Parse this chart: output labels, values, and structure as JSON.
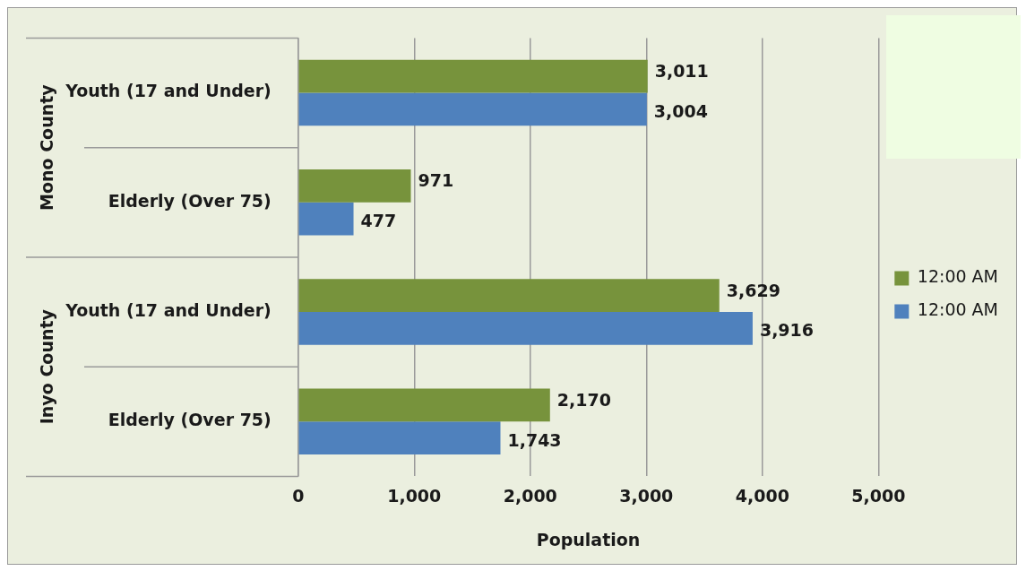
{
  "chart_data": {
    "type": "bar",
    "orientation": "horizontal",
    "xlabel": "Population",
    "categories": [
      "Youth (17 and Under)",
      "Elderly (Over 75)",
      "Youth (17 and Under)",
      "Elderly (Over 75)"
    ],
    "series": [
      {
        "name": "12:00 AM",
        "color": "#77933c",
        "values": [
          3011,
          971,
          3629,
          2170
        ],
        "value_labels": [
          "3,011",
          "971",
          "3,629",
          "2,170"
        ]
      },
      {
        "name": "12:00 AM",
        "color": "#4f81bd",
        "values": [
          3004,
          477,
          3916,
          1743
        ],
        "value_labels": [
          "3,004",
          "477",
          "3,916",
          "1,743"
        ]
      }
    ],
    "xlim": [
      0,
      5000
    ],
    "xticks": [
      {
        "value": 0,
        "label": "0"
      },
      {
        "value": 1000,
        "label": "1,000"
      },
      {
        "value": 2000,
        "label": "2,000"
      },
      {
        "value": 3000,
        "label": "3,000"
      },
      {
        "value": 4000,
        "label": "4,000"
      },
      {
        "value": 5000,
        "label": "5,000"
      }
    ],
    "grid": "x",
    "legend": "right",
    "annotations": [
      "Mono County",
      "Inyo County"
    ]
  }
}
